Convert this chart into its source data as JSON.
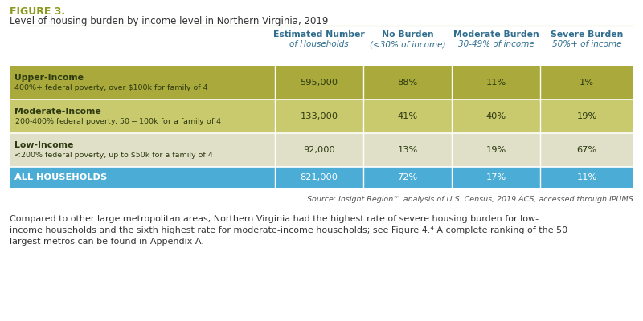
{
  "figure_label": "FIGURE 3.",
  "subtitle": "Level of housing burden by income level in Northern Virginia, 2019",
  "col_headers": [
    [
      "Estimated Number",
      "of Households"
    ],
    [
      "No Burden",
      "(<30% of income)"
    ],
    [
      "Moderate Burden",
      "30-49% of income"
    ],
    [
      "Severe Burden",
      "50%+ of income"
    ]
  ],
  "rows": [
    {
      "label_bold": "Upper-Income",
      "label_sub": "400%+ federal poverty, over $100k for family of 4",
      "values": [
        "595,000",
        "88%",
        "11%",
        "1%"
      ],
      "row_color": "#a9a93c"
    },
    {
      "label_bold": "Moderate-Income",
      "label_sub": "200-400% federal poverty, $50 - $100k for a family of 4",
      "values": [
        "133,000",
        "41%",
        "40%",
        "19%"
      ],
      "row_color": "#c9c96e"
    },
    {
      "label_bold": "Low-Income",
      "label_sub": "<200% federal poverty, up to $50k for a family of 4",
      "values": [
        "92,000",
        "13%",
        "19%",
        "67%"
      ],
      "row_color": "#e0e0c8"
    },
    {
      "label_bold": "ALL HOUSEHOLDS",
      "label_sub": "",
      "values": [
        "821,000",
        "72%",
        "17%",
        "11%"
      ],
      "row_color": "#4bacd6"
    }
  ],
  "source_text": "Source: Insight Region™ analysis of U.S. Census, 2019 ACS, accessed through IPUMS",
  "body_text": "Compared to other large metropolitan areas, Northern Virginia had the highest rate of severe housing burden for low-income households and the sixth highest rate for moderate-income households; see Figure 4.⁴ A complete ranking of the 50 largest metros can be found in Appendix A.",
  "figure_label_color": "#8b9a1e",
  "subtitle_color": "#333333",
  "header_text_color": "#2e6d8e",
  "dark_text_color": "#2d3a10",
  "all_households_text": "#ffffff",
  "bg_color": "#ffffff",
  "line_color": "#b8b86a",
  "col_divider_color": "#ffffff",
  "row_divider_color": "#ffffff",
  "source_color": "#555555",
  "body_text_color": "#333333"
}
